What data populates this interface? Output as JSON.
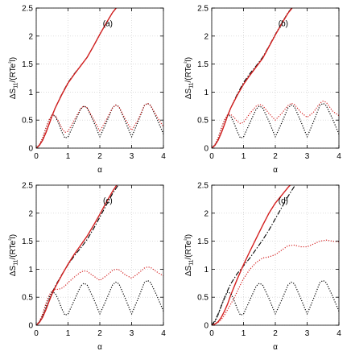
{
  "chart_data": [
    {
      "type": "line",
      "panel_label": "(a)",
      "xlabel": "α",
      "ylabel": "ΔS11/(RTe²l)",
      "xlim": [
        0,
        4
      ],
      "ylim": [
        0,
        2.5
      ],
      "xticks": [
        "0",
        "1",
        "2",
        "3",
        "4"
      ],
      "yticks": [
        "0",
        "0.5",
        "1",
        "1.5",
        "2",
        "2.5"
      ],
      "grid": true,
      "series": [
        {
          "style": "black-dashdot",
          "color": "#000000",
          "x": [
            0,
            0.1,
            0.2,
            0.3,
            0.4,
            0.5,
            0.6,
            0.8,
            1.0,
            1.2,
            1.4,
            1.6,
            1.8,
            2.0,
            2.2,
            2.4,
            2.6
          ],
          "y": [
            0,
            0.05,
            0.14,
            0.27,
            0.42,
            0.58,
            0.72,
            0.96,
            1.17,
            1.33,
            1.47,
            1.62,
            1.82,
            2.03,
            2.23,
            2.42,
            2.56
          ]
        },
        {
          "style": "red-solid",
          "color": "#d42020",
          "x": [
            0,
            0.1,
            0.2,
            0.3,
            0.4,
            0.5,
            0.6,
            0.8,
            1.0,
            1.2,
            1.4,
            1.6,
            1.8,
            2.0,
            2.2,
            2.4,
            2.6
          ],
          "y": [
            0,
            0.05,
            0.14,
            0.27,
            0.42,
            0.58,
            0.72,
            0.95,
            1.16,
            1.32,
            1.47,
            1.62,
            1.82,
            2.03,
            2.23,
            2.42,
            2.56
          ]
        },
        {
          "style": "black-dotted",
          "color": "#000000",
          "x": [
            0,
            0.1,
            0.2,
            0.3,
            0.4,
            0.5,
            0.6,
            0.7,
            0.8,
            0.9,
            1.0,
            1.2,
            1.4,
            1.5,
            1.6,
            1.8,
            2.0,
            2.2,
            2.4,
            2.5,
            2.6,
            2.8,
            3.0,
            3.2,
            3.4,
            3.5,
            3.6,
            3.8,
            4.0
          ],
          "y": [
            0,
            0.06,
            0.18,
            0.35,
            0.5,
            0.59,
            0.57,
            0.45,
            0.3,
            0.18,
            0.2,
            0.45,
            0.7,
            0.75,
            0.72,
            0.48,
            0.2,
            0.45,
            0.72,
            0.77,
            0.74,
            0.48,
            0.2,
            0.47,
            0.76,
            0.8,
            0.76,
            0.52,
            0.25
          ]
        },
        {
          "style": "red-dotted",
          "color": "#d42020",
          "x": [
            0,
            0.1,
            0.2,
            0.3,
            0.4,
            0.5,
            0.6,
            0.7,
            0.8,
            0.9,
            1.0,
            1.2,
            1.4,
            1.5,
            1.6,
            1.8,
            2.0,
            2.2,
            2.4,
            2.5,
            2.6,
            2.8,
            3.0,
            3.2,
            3.4,
            3.5,
            3.6,
            3.8,
            4.0
          ],
          "y": [
            0,
            0.06,
            0.18,
            0.35,
            0.5,
            0.6,
            0.58,
            0.48,
            0.36,
            0.28,
            0.3,
            0.5,
            0.71,
            0.75,
            0.72,
            0.52,
            0.3,
            0.5,
            0.72,
            0.77,
            0.74,
            0.52,
            0.32,
            0.5,
            0.76,
            0.8,
            0.76,
            0.56,
            0.38
          ]
        }
      ]
    },
    {
      "type": "line",
      "panel_label": "(b)",
      "xlabel": "α",
      "ylabel": "ΔS11/(RTe²l)",
      "xlim": [
        0,
        4
      ],
      "ylim": [
        0,
        2.5
      ],
      "xticks": [
        "0",
        "1",
        "2",
        "3",
        "4"
      ],
      "yticks": [
        "0",
        "0.5",
        "1",
        "1.5",
        "2",
        "2.5"
      ],
      "grid": true,
      "series": [
        {
          "style": "black-dashdot",
          "color": "#000000",
          "x": [
            0,
            0.1,
            0.2,
            0.3,
            0.4,
            0.5,
            0.6,
            0.8,
            1.0,
            1.2,
            1.4,
            1.6,
            1.8,
            2.0,
            2.2,
            2.4,
            2.6
          ],
          "y": [
            0,
            0.05,
            0.14,
            0.27,
            0.42,
            0.58,
            0.72,
            0.96,
            1.17,
            1.33,
            1.47,
            1.62,
            1.82,
            2.03,
            2.23,
            2.42,
            2.56
          ]
        },
        {
          "style": "red-solid",
          "color": "#d42020",
          "x": [
            0,
            0.1,
            0.2,
            0.3,
            0.4,
            0.5,
            0.6,
            0.8,
            1.0,
            1.2,
            1.4,
            1.6,
            1.8,
            2.0,
            2.2,
            2.4,
            2.6
          ],
          "y": [
            0,
            0.05,
            0.14,
            0.27,
            0.42,
            0.58,
            0.72,
            0.94,
            1.14,
            1.3,
            1.45,
            1.6,
            1.81,
            2.02,
            2.22,
            2.41,
            2.55
          ]
        },
        {
          "style": "black-dotted",
          "color": "#000000",
          "x": [
            0,
            0.1,
            0.2,
            0.3,
            0.4,
            0.5,
            0.6,
            0.7,
            0.8,
            0.9,
            1.0,
            1.2,
            1.4,
            1.5,
            1.6,
            1.8,
            2.0,
            2.2,
            2.4,
            2.5,
            2.6,
            2.8,
            3.0,
            3.2,
            3.4,
            3.5,
            3.6,
            3.8,
            4.0
          ],
          "y": [
            0,
            0.06,
            0.18,
            0.35,
            0.5,
            0.59,
            0.57,
            0.45,
            0.3,
            0.18,
            0.2,
            0.45,
            0.7,
            0.75,
            0.72,
            0.48,
            0.2,
            0.45,
            0.72,
            0.77,
            0.74,
            0.48,
            0.2,
            0.47,
            0.76,
            0.8,
            0.76,
            0.52,
            0.25
          ]
        },
        {
          "style": "red-dotted",
          "color": "#d42020",
          "x": [
            0,
            0.1,
            0.2,
            0.3,
            0.4,
            0.5,
            0.6,
            0.7,
            0.8,
            0.9,
            1.0,
            1.2,
            1.4,
            1.5,
            1.6,
            1.8,
            2.0,
            2.2,
            2.4,
            2.5,
            2.6,
            2.8,
            3.0,
            3.2,
            3.4,
            3.5,
            3.6,
            3.8,
            4.0
          ],
          "y": [
            0,
            0.06,
            0.18,
            0.35,
            0.5,
            0.6,
            0.6,
            0.55,
            0.48,
            0.44,
            0.46,
            0.62,
            0.75,
            0.78,
            0.76,
            0.62,
            0.5,
            0.62,
            0.76,
            0.8,
            0.78,
            0.64,
            0.55,
            0.64,
            0.8,
            0.84,
            0.82,
            0.66,
            0.58
          ]
        }
      ]
    },
    {
      "type": "line",
      "panel_label": "(c)",
      "xlabel": "α",
      "ylabel": "ΔS11/(RTe²l)",
      "xlim": [
        0,
        4
      ],
      "ylim": [
        0,
        2.5
      ],
      "xticks": [
        "0",
        "1",
        "2",
        "3",
        "4"
      ],
      "yticks": [
        "0",
        "0.5",
        "1",
        "1.5",
        "2",
        "2.5"
      ],
      "grid": true,
      "series": [
        {
          "style": "black-dashdot",
          "color": "#000000",
          "x": [
            0,
            0.1,
            0.2,
            0.3,
            0.4,
            0.5,
            0.6,
            0.8,
            1.0,
            1.2,
            1.4,
            1.6,
            1.8,
            2.0,
            2.2,
            2.4,
            2.6
          ],
          "y": [
            0,
            0.06,
            0.16,
            0.29,
            0.44,
            0.58,
            0.7,
            0.9,
            1.08,
            1.24,
            1.38,
            1.53,
            1.72,
            1.93,
            2.14,
            2.35,
            2.52
          ]
        },
        {
          "style": "red-solid",
          "color": "#d42020",
          "x": [
            0,
            0.1,
            0.2,
            0.3,
            0.4,
            0.5,
            0.6,
            0.8,
            1.0,
            1.2,
            1.4,
            1.6,
            1.8,
            2.0,
            2.2,
            2.4,
            2.6
          ],
          "y": [
            0,
            0.05,
            0.14,
            0.27,
            0.42,
            0.56,
            0.68,
            0.89,
            1.09,
            1.27,
            1.43,
            1.59,
            1.78,
            1.98,
            2.19,
            2.39,
            2.56
          ]
        },
        {
          "style": "black-dotted",
          "color": "#000000",
          "x": [
            0,
            0.1,
            0.2,
            0.3,
            0.4,
            0.5,
            0.6,
            0.7,
            0.8,
            0.9,
            1.0,
            1.2,
            1.4,
            1.5,
            1.6,
            1.8,
            2.0,
            2.2,
            2.4,
            2.5,
            2.6,
            2.8,
            3.0,
            3.2,
            3.4,
            3.5,
            3.6,
            3.8,
            4.0
          ],
          "y": [
            0,
            0.06,
            0.18,
            0.35,
            0.5,
            0.59,
            0.57,
            0.45,
            0.3,
            0.18,
            0.2,
            0.45,
            0.7,
            0.75,
            0.72,
            0.48,
            0.2,
            0.45,
            0.72,
            0.77,
            0.74,
            0.48,
            0.2,
            0.47,
            0.76,
            0.8,
            0.76,
            0.52,
            0.25
          ]
        },
        {
          "style": "red-dotted",
          "color": "#d42020",
          "x": [
            0,
            0.1,
            0.2,
            0.3,
            0.4,
            0.5,
            0.6,
            0.7,
            0.8,
            0.9,
            1.0,
            1.2,
            1.4,
            1.5,
            1.6,
            1.8,
            2.0,
            2.2,
            2.4,
            2.5,
            2.6,
            2.8,
            3.0,
            3.2,
            3.4,
            3.5,
            3.6,
            3.8,
            4.0
          ],
          "y": [
            0,
            0.07,
            0.2,
            0.38,
            0.53,
            0.62,
            0.64,
            0.64,
            0.66,
            0.7,
            0.76,
            0.86,
            0.95,
            0.97,
            0.96,
            0.88,
            0.8,
            0.88,
            0.98,
            1.0,
            0.99,
            0.9,
            0.84,
            0.92,
            1.02,
            1.04,
            1.03,
            0.95,
            0.88
          ]
        }
      ]
    },
    {
      "type": "line",
      "panel_label": "(d)",
      "xlabel": "α",
      "ylabel": "ΔS11/(RTe²l)",
      "xlim": [
        0,
        4
      ],
      "ylim": [
        0,
        2.5
      ],
      "xticks": [
        "0",
        "1",
        "2",
        "3",
        "4"
      ],
      "yticks": [
        "0",
        "0.5",
        "1",
        "1.5",
        "2",
        "2.5"
      ],
      "grid": true,
      "series": [
        {
          "style": "black-dashdot",
          "color": "#000000",
          "x": [
            0,
            0.1,
            0.2,
            0.3,
            0.4,
            0.5,
            0.6,
            0.8,
            1.0,
            1.2,
            1.4,
            1.6,
            1.8,
            2.0,
            2.2,
            2.4,
            2.6
          ],
          "y": [
            0,
            0.08,
            0.2,
            0.34,
            0.48,
            0.62,
            0.74,
            0.92,
            1.06,
            1.2,
            1.36,
            1.52,
            1.7,
            1.9,
            2.1,
            2.3,
            2.48
          ]
        },
        {
          "style": "red-solid",
          "color": "#d42020",
          "x": [
            0,
            0.1,
            0.2,
            0.3,
            0.4,
            0.5,
            0.6,
            0.8,
            1.0,
            1.2,
            1.4,
            1.6,
            1.8,
            2.0,
            2.2,
            2.4,
            2.5
          ],
          "y": [
            0,
            0.02,
            0.06,
            0.14,
            0.25,
            0.38,
            0.54,
            0.82,
            1.08,
            1.32,
            1.55,
            1.78,
            2.0,
            2.18,
            2.32,
            2.46,
            2.52
          ]
        },
        {
          "style": "black-dotted",
          "color": "#000000",
          "x": [
            0,
            0.1,
            0.2,
            0.3,
            0.4,
            0.5,
            0.6,
            0.7,
            0.8,
            0.9,
            1.0,
            1.2,
            1.4,
            1.5,
            1.6,
            1.8,
            2.0,
            2.2,
            2.4,
            2.5,
            2.6,
            2.8,
            3.0,
            3.2,
            3.4,
            3.5,
            3.6,
            3.8,
            4.0
          ],
          "y": [
            0,
            0.06,
            0.18,
            0.35,
            0.5,
            0.59,
            0.57,
            0.45,
            0.3,
            0.18,
            0.2,
            0.45,
            0.7,
            0.75,
            0.72,
            0.48,
            0.2,
            0.45,
            0.72,
            0.77,
            0.74,
            0.48,
            0.2,
            0.47,
            0.76,
            0.8,
            0.76,
            0.52,
            0.25
          ]
        },
        {
          "style": "red-dotted",
          "color": "#d42020",
          "x": [
            0,
            0.1,
            0.2,
            0.3,
            0.4,
            0.5,
            0.6,
            0.7,
            0.8,
            0.9,
            1.0,
            1.2,
            1.4,
            1.6,
            1.8,
            2.0,
            2.2,
            2.4,
            2.6,
            2.8,
            3.0,
            3.2,
            3.4,
            3.6,
            3.8,
            4.0
          ],
          "y": [
            0,
            0.02,
            0.05,
            0.1,
            0.18,
            0.28,
            0.38,
            0.48,
            0.6,
            0.72,
            0.83,
            1.0,
            1.12,
            1.2,
            1.22,
            1.26,
            1.34,
            1.42,
            1.43,
            1.4,
            1.4,
            1.45,
            1.5,
            1.52,
            1.5,
            1.49
          ]
        }
      ]
    }
  ]
}
